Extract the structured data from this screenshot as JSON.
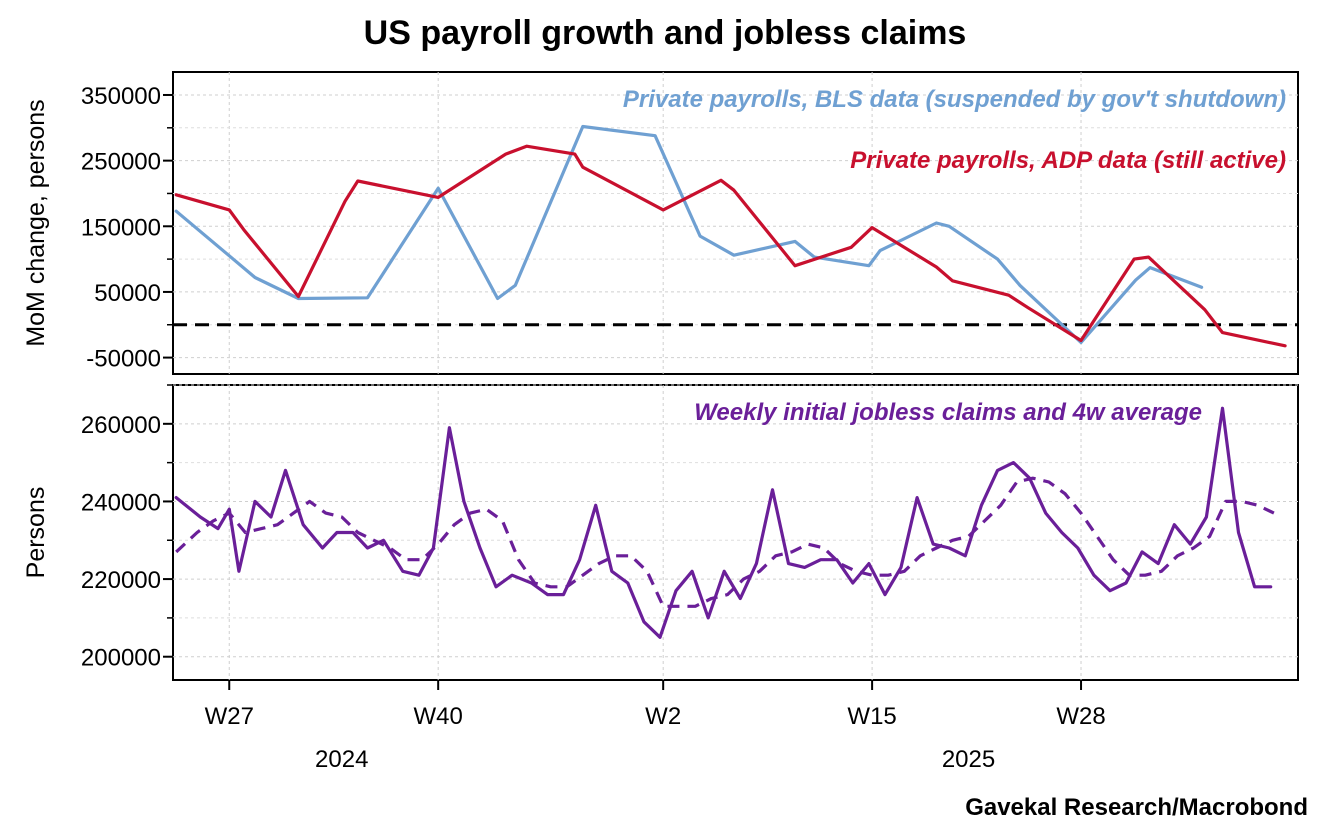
{
  "chart_data": {
    "title": "US payroll growth and jobless claims",
    "source": "Gavekal Research/Macrobond",
    "x_axis": {
      "ticks": [
        {
          "label": "W27",
          "t": 0.0
        },
        {
          "label": "W40",
          "t": 13.0
        },
        {
          "label": "W2",
          "t": 27.0
        },
        {
          "label": "W15",
          "t": 40.0
        },
        {
          "label": "W28",
          "t": 53.0
        }
      ],
      "years": [
        {
          "label": "2024",
          "t": 7.0
        },
        {
          "label": "2025",
          "t": 46.0
        }
      ],
      "range": [
        -3.5,
        66.5
      ],
      "units": "weeks since 2024 W27"
    },
    "panels": [
      {
        "id": "payrolls",
        "type": "line",
        "ylabel": "MoM change, persons",
        "ylim": [
          -75000,
          385000
        ],
        "yticks": [
          -50000,
          50000,
          150000,
          250000,
          350000
        ],
        "yminor": [
          0,
          100000,
          200000,
          300000
        ],
        "ytick_labels": [
          "-50000",
          "50000",
          "150000",
          "250000",
          "350000"
        ],
        "zero_line": 0,
        "series": [
          {
            "name": "Private payrolls, BLS data (suspended by gov't shutdown)",
            "color": "#6fa0d2",
            "style": "solid",
            "t": [
              -3.3,
              0,
              1.6,
              4.3,
              8.6,
              13.0,
              16.7,
              17.8,
              22.0,
              26.5,
              29.3,
              31.4,
              35.2,
              36.4,
              39.8,
              40.5,
              44.0,
              44.8,
              47.8,
              49.2,
              53.0,
              56.4,
              57.3,
              60.5
            ],
            "values": [
              173000,
              105000,
              72000,
              40000,
              41000,
              208000,
              40000,
              60000,
              302000,
              288000,
              135000,
              106000,
              127000,
              103000,
              90000,
              113000,
              155000,
              150000,
              100000,
              60000,
              -27000,
              68000,
              87000,
              57000
            ]
          },
          {
            "name": "Private payrolls, ADP data (still active)",
            "color": "#c8102e",
            "style": "solid",
            "t": [
              -3.3,
              0,
              0.9,
              4.3,
              7.2,
              8.0,
              13.0,
              17.2,
              18.5,
              21.5,
              22.0,
              27.0,
              30.6,
              31.4,
              35.2,
              38.7,
              40.0,
              44.0,
              45.0,
              48.5,
              49.7,
              53.0,
              56.3,
              57.2,
              60.7,
              61.8,
              65.7
            ],
            "values": [
              198000,
              175000,
              145000,
              43000,
              188000,
              219000,
              194000,
              260000,
              272000,
              260000,
              240000,
              175000,
              220000,
              205000,
              90000,
              118000,
              148000,
              88000,
              67000,
              45000,
              26000,
              -24000,
              100000,
              103000,
              23000,
              -12000,
              -32000
            ]
          }
        ]
      },
      {
        "id": "claims",
        "type": "line",
        "ylabel": "Persons",
        "ylim": [
          194000,
          270000
        ],
        "yticks": [
          200000,
          220000,
          240000,
          260000
        ],
        "yminor": [
          210000,
          230000,
          250000,
          270000
        ],
        "ytick_labels": [
          "200000",
          "220000",
          "240000",
          "260000"
        ],
        "series": [
          {
            "name": "Weekly initial jobless claims and 4w average",
            "color": "#6a1f99",
            "style": "solid",
            "t": [
              -3.3,
              -1.8,
              -0.7,
              0,
              0.6,
              1.6,
              2.6,
              3.5,
              4.6,
              5.8,
              6.7,
              7.7,
              8.6,
              9.6,
              10.8,
              11.8,
              12.7,
              13.7,
              14.6,
              15.6,
              16.6,
              17.6,
              18.8,
              19.8,
              20.8,
              21.8,
              22.8,
              23.8,
              24.8,
              25.8,
              26.8,
              27.8,
              28.8,
              29.8,
              30.8,
              31.8,
              32.8,
              33.8,
              34.8,
              35.8,
              36.8,
              37.8,
              38.8,
              39.8,
              40.8,
              41.8,
              42.8,
              43.8,
              44.8,
              45.8,
              46.8,
              47.8,
              48.8,
              49.8,
              50.8,
              51.8,
              52.8,
              53.8,
              54.8,
              55.8,
              56.8,
              57.8,
              58.8,
              59.8,
              60.8,
              61.8,
              62.8,
              63.8,
              64.8
            ],
            "values": [
              241000,
              236000,
              233000,
              238000,
              222000,
              240000,
              236000,
              248000,
              234000,
              228000,
              232000,
              232000,
              228000,
              230000,
              222000,
              221000,
              228000,
              259000,
              240000,
              228000,
              218000,
              221000,
              219000,
              216000,
              216000,
              225000,
              239000,
              222000,
              219000,
              209000,
              205000,
              217000,
              222000,
              210000,
              222000,
              215000,
              224000,
              243000,
              224000,
              223000,
              225000,
              225000,
              219000,
              224000,
              216000,
              223000,
              241000,
              229000,
              228000,
              226000,
              239000,
              248000,
              250000,
              246000,
              237000,
              232000,
              228000,
              221000,
              217000,
              219000,
              227000,
              224000,
              234000,
              229000,
              236000,
              264000,
              232000,
              218000,
              218000
            ]
          },
          {
            "name": "4w average",
            "color": "#6a1f99",
            "style": "dashed",
            "t": [
              -3.3,
              -2.0,
              -1.0,
              0,
              1.0,
              2.0,
              3.0,
              4.0,
              5.0,
              6.0,
              7.0,
              8.0,
              9.0,
              10.0,
              11.0,
              12.0,
              13.0,
              14.0,
              15.0,
              16.0,
              17.0,
              18.0,
              19.0,
              20.0,
              21.0,
              22.0,
              23.0,
              24.0,
              25.0,
              26.0,
              27.0,
              28.0,
              29.0,
              30.0,
              31.0,
              32.0,
              33.0,
              34.0,
              35.0,
              36.0,
              37.0,
              38.0,
              39.0,
              40.0,
              41.0,
              42.0,
              43.0,
              44.0,
              45.0,
              46.0,
              47.0,
              48.0,
              49.0,
              50.0,
              51.0,
              52.0,
              53.0,
              54.0,
              55.0,
              56.0,
              57.0,
              58.0,
              59.0,
              60.0,
              61.0,
              62.0,
              63.0,
              64.0,
              65.0
            ],
            "values": [
              227000,
              232000,
              235000,
              237000,
              232000,
              233000,
              234000,
              237000,
              240000,
              237000,
              236000,
              232000,
              230000,
              228000,
              225000,
              225000,
              229000,
              234000,
              237000,
              238000,
              235000,
              225000,
              219000,
              218000,
              218000,
              221000,
              224000,
              226000,
              226000,
              222000,
              213000,
              213000,
              213000,
              215000,
              216000,
              220000,
              222000,
              226000,
              227000,
              229000,
              228000,
              224000,
              222000,
              221000,
              221000,
              222000,
              226000,
              228000,
              230000,
              231000,
              235000,
              239000,
              245000,
              246000,
              245000,
              242000,
              237000,
              231000,
              225000,
              221000,
              221000,
              222000,
              226000,
              228000,
              231000,
              240000,
              240000,
              239000,
              237000
            ]
          }
        ]
      }
    ]
  }
}
